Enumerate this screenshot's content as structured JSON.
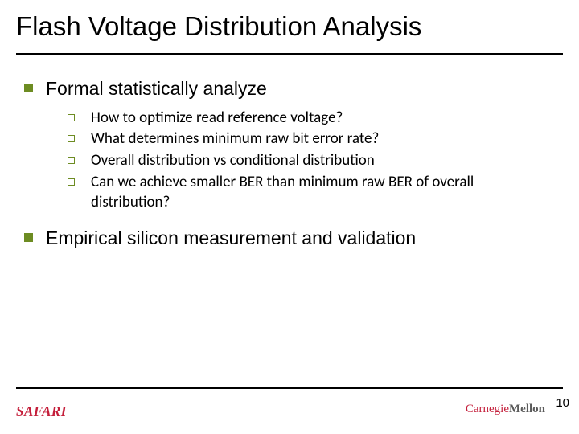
{
  "title": "Flash Voltage Distribution Analysis",
  "points": {
    "p1": "Formal statistically analyze",
    "p1_subs": {
      "s1": "How to optimize read reference voltage?",
      "s2": "What determines minimum raw bit error rate?",
      "s3": "Overall distribution vs conditional distribution",
      "s4": "Can we achieve smaller BER than minimum raw BER of overall distribution?"
    },
    "p2": "Empirical silicon measurement and validation"
  },
  "footer": {
    "logo_left": "SAFARI",
    "logo_right_c": "Carnegie",
    "logo_right_m": "Mellon",
    "page_number": "10"
  },
  "colors": {
    "accent": "#6d8c22",
    "logo_red": "#c41e3a"
  }
}
